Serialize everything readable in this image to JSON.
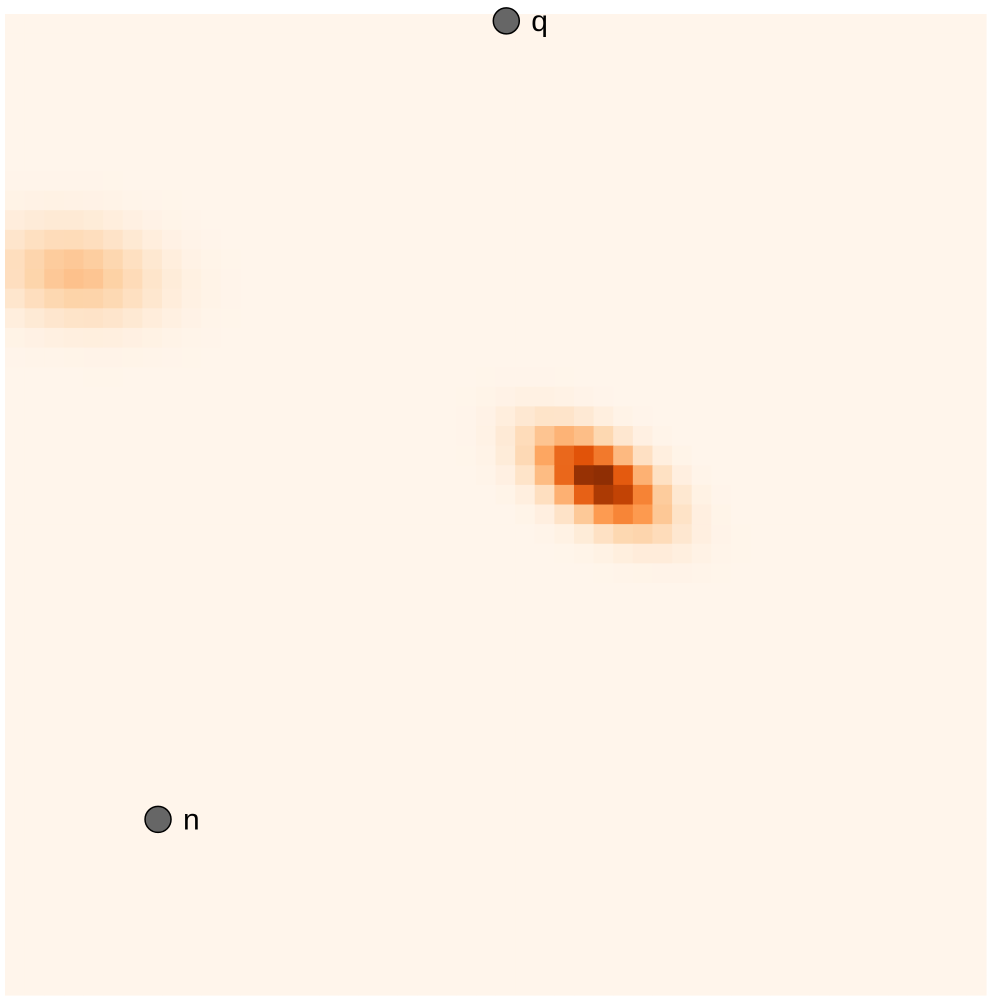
{
  "chart_data": {
    "type": "heatmap",
    "title": "",
    "xlabel": "",
    "ylabel": "",
    "grid": false,
    "legend": "none",
    "xlim": [
      0,
      1
    ],
    "ylim": [
      0,
      1
    ],
    "colormap": [
      "#fff5eb",
      "#fdd2a6",
      "#fd9243",
      "#df4f05",
      "#7f2704"
    ],
    "resolution": 50,
    "hotspots": [
      {
        "cx": 0.605,
        "cy": 0.525,
        "sx": 0.042,
        "sy": 0.032,
        "rho": -0.55,
        "amp": 1.0
      },
      {
        "cx": 0.072,
        "cy": 0.735,
        "sx": 0.055,
        "sy": 0.033,
        "rho": -0.15,
        "amp": 0.32
      }
    ],
    "markers": [
      {
        "label": "q",
        "x": 0.511,
        "y": 0.993
      },
      {
        "label": "n",
        "x": 0.156,
        "y": 0.179
      }
    ],
    "marker_fill": "#666666",
    "marker_stroke": "#000000"
  }
}
